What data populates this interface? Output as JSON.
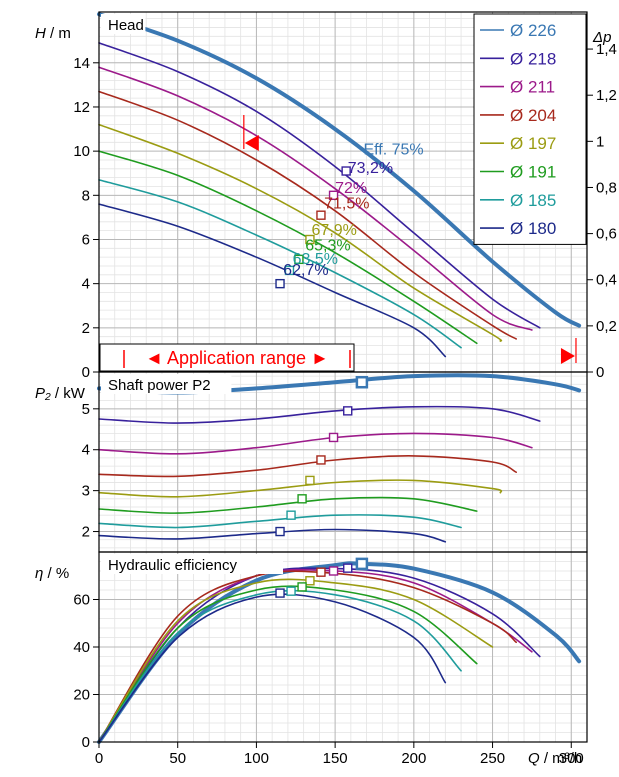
{
  "chart_data": {
    "type": "line",
    "x_axis": {
      "label": "Q / m³/h",
      "ticks": [
        0,
        50,
        100,
        150,
        200,
        250,
        300
      ],
      "range": [
        0,
        310
      ]
    },
    "legend": {
      "placement": "top-right",
      "entries": [
        {
          "label": "Ø 226",
          "color": "#3a78b3"
        },
        {
          "label": "Ø 218",
          "color": "#38219c"
        },
        {
          "label": "Ø 211",
          "color": "#9c1a8a"
        },
        {
          "label": "Ø 204",
          "color": "#a7291d"
        },
        {
          "label": "Ø 197",
          "color": "#9b9c12"
        },
        {
          "label": "Ø 191",
          "color": "#1f9c1f"
        },
        {
          "label": "Ø 185",
          "color": "#1f9c9c"
        },
        {
          "label": "Ø 180",
          "color": "#1d2a8a"
        }
      ]
    },
    "panels": [
      {
        "id": "head",
        "title": "Head",
        "ylabel": "H / m",
        "yticks": [
          0,
          2,
          4,
          6,
          8,
          10,
          12,
          14
        ],
        "ylim": [
          0,
          16.3
        ],
        "secondary_ylabel": "Δp",
        "secondary_ticks": [
          "0",
          "0,2",
          "0,4",
          "0,6",
          "0,8",
          "1",
          "1,2",
          "1,4"
        ],
        "series": [
          {
            "name": "Ø 226",
            "thick": true,
            "x": [
              0,
              50,
              100,
              150,
              200,
              250,
              290,
              305
            ],
            "y": [
              16.2,
              15.0,
              13.3,
              11.0,
              8.2,
              5.0,
              2.7,
              2.1
            ]
          },
          {
            "name": "Ø 218",
            "x": [
              0,
              50,
              100,
              150,
              200,
              250,
              280
            ],
            "y": [
              14.9,
              13.6,
              11.8,
              9.3,
              6.3,
              3.3,
              2.0
            ]
          },
          {
            "name": "Ø 211",
            "x": [
              0,
              50,
              100,
              150,
              200,
              250,
              275
            ],
            "y": [
              13.8,
              12.5,
              10.7,
              8.3,
              5.5,
              2.6,
              1.9
            ]
          },
          {
            "name": "Ø 204",
            "x": [
              0,
              50,
              100,
              150,
              200,
              250,
              265
            ],
            "y": [
              12.7,
              11.4,
              9.6,
              7.3,
              4.5,
              2.1,
              1.5
            ]
          },
          {
            "name": "Ø 197",
            "x": [
              0,
              50,
              100,
              150,
              200,
              250,
              255
            ],
            "y": [
              11.2,
              9.9,
              8.3,
              6.3,
              3.8,
              1.7,
              1.4
            ]
          },
          {
            "name": "Ø 191",
            "x": [
              0,
              50,
              100,
              150,
              200,
              240
            ],
            "y": [
              10.0,
              8.9,
              7.3,
              5.4,
              3.2,
              1.3
            ]
          },
          {
            "name": "Ø 185",
            "x": [
              0,
              50,
              100,
              150,
              200,
              230
            ],
            "y": [
              8.7,
              7.7,
              6.2,
              4.5,
              2.6,
              1.1
            ]
          },
          {
            "name": "Ø 180",
            "x": [
              0,
              50,
              100,
              150,
              200,
              220
            ],
            "y": [
              7.6,
              6.6,
              5.2,
              3.6,
              2.0,
              0.7
            ]
          }
        ],
        "markers": [
          {
            "series": "Ø 218",
            "x": 157,
            "y": 9.1
          },
          {
            "series": "Ø 211",
            "x": 149,
            "y": 8.0
          },
          {
            "series": "Ø 204",
            "x": 141,
            "y": 7.1
          },
          {
            "series": "Ø 197",
            "x": 134,
            "y": 6.0
          },
          {
            "series": "Ø 191",
            "x": 127,
            "y": 5.1
          },
          {
            "series": "Ø 185",
            "x": 121,
            "y": 4.6
          },
          {
            "series": "Ø 180",
            "x": 115,
            "y": 4.0
          }
        ],
        "annotations": [
          {
            "text": "Eff. 75%",
            "x": 168,
            "y": 9.85,
            "color": "#3a78b3"
          },
          {
            "text": "73,2%",
            "x": 158,
            "y": 9.0,
            "color": "#38219c"
          },
          {
            "text": "72%",
            "x": 150,
            "y": 8.1,
            "color": "#9c1a8a"
          },
          {
            "text": "71,5%",
            "x": 143,
            "y": 7.4,
            "color": "#a7291d"
          },
          {
            "text": "67,9%",
            "x": 135,
            "y": 6.2,
            "color": "#9b9c12"
          },
          {
            "text": "65,3%",
            "x": 131,
            "y": 5.5,
            "color": "#1f9c1f"
          },
          {
            "text": "63,5%",
            "x": 123,
            "y": 4.9,
            "color": "#1f9c9c"
          },
          {
            "text": "62,7%",
            "x": 117,
            "y": 4.4,
            "color": "#1d2a8a"
          }
        ],
        "application_range": {
          "label": "◄ Application range ►",
          "start": 92,
          "end": 303
        }
      },
      {
        "id": "power",
        "title": "Shaft power P2",
        "ylabel": "P₂ / kW",
        "yticks": [
          2,
          3,
          4,
          5
        ],
        "ylim": [
          1.5,
          5.9
        ],
        "series": [
          {
            "name": "Ø 226",
            "thick": true,
            "x": [
              0,
              50,
              100,
              150,
              200,
              250,
              290,
              305
            ],
            "y": [
              5.5,
              5.4,
              5.5,
              5.65,
              5.8,
              5.8,
              5.6,
              5.45
            ]
          },
          {
            "name": "Ø 218",
            "x": [
              0,
              50,
              100,
              150,
              200,
              250,
              280
            ],
            "y": [
              4.75,
              4.65,
              4.75,
              4.95,
              5.05,
              5.0,
              4.7
            ]
          },
          {
            "name": "Ø 211",
            "x": [
              0,
              50,
              100,
              150,
              200,
              250,
              275
            ],
            "y": [
              4.0,
              3.9,
              4.05,
              4.3,
              4.4,
              4.3,
              4.05
            ]
          },
          {
            "name": "Ø 204",
            "x": [
              0,
              50,
              100,
              150,
              200,
              250,
              265
            ],
            "y": [
              3.4,
              3.35,
              3.5,
              3.75,
              3.85,
              3.7,
              3.45
            ]
          },
          {
            "name": "Ø 197",
            "x": [
              0,
              50,
              100,
              150,
              200,
              250,
              255
            ],
            "y": [
              2.95,
              2.85,
              3.0,
              3.2,
              3.25,
              3.05,
              2.95
            ]
          },
          {
            "name": "Ø 191",
            "x": [
              0,
              50,
              100,
              150,
              200,
              240
            ],
            "y": [
              2.55,
              2.45,
              2.6,
              2.8,
              2.8,
              2.5
            ]
          },
          {
            "name": "Ø 185",
            "x": [
              0,
              50,
              100,
              150,
              200,
              230
            ],
            "y": [
              2.2,
              2.1,
              2.25,
              2.4,
              2.35,
              2.1
            ]
          },
          {
            "name": "Ø 180",
            "x": [
              0,
              50,
              100,
              150,
              200,
              220
            ],
            "y": [
              1.9,
              1.82,
              1.95,
              2.05,
              1.95,
              1.75
            ]
          }
        ],
        "markers": [
          {
            "series": "Ø 226",
            "x": 167,
            "y": 5.65,
            "big": true
          },
          {
            "series": "Ø 218",
            "x": 158,
            "y": 4.95
          },
          {
            "series": "Ø 211",
            "x": 149,
            "y": 4.3
          },
          {
            "series": "Ø 204",
            "x": 141,
            "y": 3.75
          },
          {
            "series": "Ø 197",
            "x": 134,
            "y": 3.25
          },
          {
            "series": "Ø 191",
            "x": 129,
            "y": 2.8
          },
          {
            "series": "Ø 185",
            "x": 122,
            "y": 2.4
          },
          {
            "series": "Ø 180",
            "x": 115,
            "y": 2.0
          }
        ]
      },
      {
        "id": "efficiency",
        "title": "Hydraulic efficiency",
        "ylabel": "η / %",
        "yticks": [
          0,
          20,
          40,
          60
        ],
        "ylim": [
          0,
          80
        ],
        "series": [
          {
            "name": "Ø 226",
            "thick": true,
            "x": [
              0,
              50,
              100,
              150,
              167,
              200,
              250,
              290,
              305
            ],
            "y": [
              0,
              45,
              68,
              74.5,
              75,
              73,
              63,
              45,
              34
            ]
          },
          {
            "name": "Ø 218",
            "x": [
              0,
              50,
              100,
              150,
              200,
              250,
              280
            ],
            "y": [
              0,
              48,
              70,
              73,
              69,
              54,
              36
            ]
          },
          {
            "name": "Ø 211",
            "x": [
              0,
              50,
              100,
              150,
              200,
              250,
              275
            ],
            "y": [
              0,
              50,
              70,
              72,
              67,
              50,
              38
            ]
          },
          {
            "name": "Ø 204",
            "x": [
              0,
              50,
              100,
              150,
              200,
              250,
              265
            ],
            "y": [
              0,
              53,
              70,
              71,
              65,
              50,
              42
            ]
          },
          {
            "name": "Ø 197",
            "x": [
              0,
              50,
              100,
              150,
              200,
              250
            ],
            "y": [
              0,
              51,
              67,
              67,
              60,
              40
            ]
          },
          {
            "name": "Ø 191",
            "x": [
              0,
              50,
              100,
              150,
              200,
              240
            ],
            "y": [
              0,
              48,
              64,
              64,
              55,
              33
            ]
          },
          {
            "name": "Ø 185",
            "x": [
              0,
              50,
              100,
              150,
              200,
              230
            ],
            "y": [
              0,
              46,
              62,
              62,
              51,
              30
            ]
          },
          {
            "name": "Ø 180",
            "x": [
              0,
              50,
              100,
              150,
              200,
              220
            ],
            "y": [
              0,
              44,
              61,
              59,
              44,
              25
            ]
          }
        ],
        "markers": [
          {
            "series": "Ø 226",
            "x": 167,
            "y": 75,
            "big": true
          },
          {
            "series": "Ø 218",
            "x": 158,
            "y": 73.2
          },
          {
            "series": "Ø 211",
            "x": 149,
            "y": 72
          },
          {
            "series": "Ø 204",
            "x": 141,
            "y": 71.5
          },
          {
            "series": "Ø 197",
            "x": 134,
            "y": 67.9
          },
          {
            "series": "Ø 191",
            "x": 129,
            "y": 65.3
          },
          {
            "series": "Ø 185",
            "x": 122,
            "y": 63.5
          },
          {
            "series": "Ø 180",
            "x": 115,
            "y": 62.7
          }
        ]
      }
    ]
  }
}
